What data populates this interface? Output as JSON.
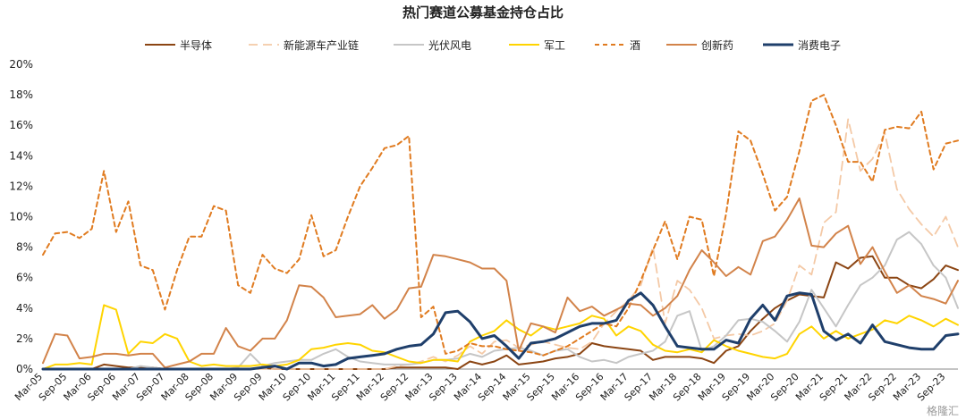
{
  "chart_data": {
    "type": "line",
    "title": "热门赛道公募基金持仓占比",
    "ylim": [
      0,
      20
    ],
    "yticks": [
      "0%",
      "2%",
      "4%",
      "6%",
      "8%",
      "10%",
      "12%",
      "14%",
      "16%",
      "18%",
      "20%"
    ],
    "x": [
      "Mar-05",
      "Jun-05",
      "Sep-05",
      "Dec-05",
      "Mar-06",
      "Jun-06",
      "Sep-06",
      "Dec-06",
      "Mar-07",
      "Jun-07",
      "Sep-07",
      "Dec-07",
      "Mar-08",
      "Jun-08",
      "Sep-08",
      "Dec-08",
      "Mar-09",
      "Jun-09",
      "Sep-09",
      "Dec-09",
      "Mar-10",
      "Jun-10",
      "Sep-10",
      "Dec-10",
      "Mar-11",
      "Jun-11",
      "Sep-11",
      "Dec-11",
      "Mar-12",
      "Jun-12",
      "Sep-12",
      "Dec-12",
      "Mar-13",
      "Jun-13",
      "Sep-13",
      "Dec-13",
      "Mar-14",
      "Jun-14",
      "Sep-14",
      "Dec-14",
      "Mar-15",
      "Jun-15",
      "Sep-15",
      "Dec-15",
      "Mar-16",
      "Jun-16",
      "Sep-16",
      "Dec-16",
      "Mar-17",
      "Jun-17",
      "Sep-17",
      "Dec-17",
      "Mar-18",
      "Jun-18",
      "Sep-18",
      "Dec-18",
      "Mar-19",
      "Jun-19",
      "Sep-19",
      "Dec-19",
      "Mar-20",
      "Jun-20",
      "Sep-20",
      "Dec-20",
      "Mar-21",
      "Jun-21",
      "Sep-21",
      "Dec-21",
      "Mar-22",
      "Jun-22",
      "Sep-22",
      "Dec-22",
      "Mar-23",
      "Jun-23",
      "Sep-23",
      "Dec-23"
    ],
    "xticks": [
      "Mar-05",
      "Sep-05",
      "Mar-06",
      "Sep-06",
      "Mar-07",
      "Sep-07",
      "Mar-08",
      "Sep-08",
      "Mar-09",
      "Sep-09",
      "Mar-10",
      "Sep-10",
      "Mar-11",
      "Sep-11",
      "Mar-12",
      "Sep-12",
      "Mar-13",
      "Sep-13",
      "Mar-14",
      "Sep-14",
      "Mar-15",
      "Sep-15",
      "Mar-16",
      "Sep-16",
      "Mar-17",
      "Sep-17",
      "Mar-18",
      "Sep-18",
      "Mar-19",
      "Sep-19",
      "Mar-20",
      "Sep-20",
      "Mar-21",
      "Sep-21",
      "Mar-22",
      "Sep-22",
      "Mar-23",
      "Sep-23"
    ],
    "series": [
      {
        "name": "半导体",
        "color": "#8B4513",
        "dash": "solid",
        "width": 2,
        "values": [
          0,
          0,
          0,
          0,
          0,
          0.3,
          0.2,
          0.1,
          0.1,
          0.1,
          0,
          0,
          0,
          0,
          0,
          0,
          0,
          0,
          0.1,
          0,
          0,
          0,
          0,
          0,
          0,
          0,
          0,
          0,
          0,
          0.1,
          0.1,
          0.1,
          0.1,
          0.1,
          0,
          0.5,
          0.3,
          0.5,
          0.9,
          0.3,
          0.4,
          0.5,
          0.7,
          0.8,
          1.0,
          1.7,
          1.5,
          1.4,
          1.3,
          1.2,
          0.6,
          0.8,
          0.8,
          0.8,
          0.7,
          0.4,
          1.2,
          1.5,
          2.5,
          3.3,
          4.0,
          4.5,
          4.9,
          4.8,
          4.7,
          7.0,
          6.6,
          7.3,
          7.4,
          6.0,
          6.0,
          5.5,
          5.3,
          5.9,
          6.8,
          6.5
        ]
      },
      {
        "name": "新能源车产业链",
        "color": "#F4C9A6",
        "dash": "10,6",
        "width": 1.8,
        "values": [
          0,
          0,
          0,
          0,
          0,
          0,
          0,
          0,
          0,
          0,
          0,
          0,
          0,
          0,
          0,
          0,
          0,
          0,
          0,
          0,
          0,
          0,
          0,
          0,
          0,
          0,
          0,
          0,
          0,
          0.2,
          0.3,
          0.5,
          0.8,
          0.5,
          0.9,
          1.5,
          1.0,
          1.8,
          1.9,
          1.4,
          1.6,
          1.8,
          1.6,
          1.4,
          1.3,
          1.8,
          3.0,
          3.8,
          4.5,
          5.5,
          8.0,
          3.0,
          5.8,
          5.2,
          4.0,
          2.0,
          2.2,
          2.3,
          2.2,
          2.5,
          3.0,
          4.5,
          6.8,
          6.2,
          9.6,
          10.3,
          16.4,
          13.0,
          13.8,
          15.5,
          11.8,
          10.5,
          9.5,
          8.7,
          10.0,
          8.0
        ]
      },
      {
        "name": "光伏风电",
        "color": "#C6C6C6",
        "dash": "solid",
        "width": 2,
        "values": [
          0,
          0,
          0,
          0,
          0,
          0,
          0,
          0,
          0.2,
          0.1,
          0,
          0,
          0,
          0,
          0,
          0,
          0.1,
          1.0,
          0.2,
          0.4,
          0.5,
          0.6,
          0.6,
          1.0,
          1.3,
          0.8,
          0.5,
          0.4,
          0.3,
          0.3,
          0.3,
          0.4,
          0.6,
          0.6,
          0.7,
          1.0,
          0.8,
          1.2,
          1.3,
          1.4,
          1.2,
          0.9,
          1.2,
          1.3,
          0.8,
          0.5,
          0.6,
          0.4,
          0.8,
          1.0,
          1.2,
          1.8,
          3.5,
          3.8,
          1.2,
          1.5,
          2.2,
          3.2,
          3.3,
          3.1,
          2.5,
          1.8,
          3.1,
          5.2,
          4.0,
          2.8,
          4.2,
          5.5,
          6.0,
          6.8,
          8.5,
          9.0,
          8.2,
          6.8,
          6.0,
          4.0
        ]
      },
      {
        "name": "军工",
        "color": "#FFD400",
        "dash": "solid",
        "width": 2,
        "values": [
          0,
          0.3,
          0.3,
          0.4,
          0.3,
          4.2,
          3.9,
          1.0,
          1.8,
          1.7,
          2.3,
          2.0,
          0.5,
          0.2,
          0.3,
          0.2,
          0.2,
          0.2,
          0.3,
          0.2,
          0.3,
          0.6,
          1.3,
          1.4,
          1.6,
          1.7,
          1.6,
          1.2,
          1.1,
          0.8,
          0.5,
          0.4,
          0.6,
          0.6,
          0.5,
          1.8,
          2.2,
          2.5,
          3.2,
          2.6,
          2.2,
          2.8,
          2.6,
          2.8,
          3.0,
          3.5,
          3.3,
          2.2,
          2.8,
          2.5,
          1.6,
          1.2,
          1.1,
          1.3,
          1.1,
          1.9,
          1.5,
          1.2,
          1.0,
          0.8,
          0.7,
          1.0,
          2.3,
          2.8,
          2.0,
          2.5,
          2.0,
          2.3,
          2.6,
          3.2,
          3.0,
          3.5,
          3.2,
          2.8,
          3.3,
          2.9
        ]
      },
      {
        "name": "酒",
        "color": "#E07B20",
        "dash": "5,4",
        "width": 2,
        "values": [
          7.5,
          8.9,
          9.0,
          8.6,
          9.2,
          13.0,
          9.0,
          11.0,
          6.8,
          6.5,
          3.9,
          6.5,
          8.7,
          8.7,
          10.7,
          10.4,
          5.5,
          5.0,
          7.5,
          6.6,
          6.3,
          7.2,
          10.1,
          7.4,
          7.8,
          10.0,
          12.0,
          13.2,
          14.5,
          14.7,
          15.3,
          3.4,
          4.1,
          1.0,
          1.2,
          1.7,
          1.5,
          1.5,
          1.3,
          1.2,
          1.1,
          0.9,
          1.2,
          1.5,
          2.0,
          2.5,
          3.0,
          2.8,
          4.0,
          5.8,
          7.8,
          9.7,
          7.2,
          10.0,
          9.8,
          6.1,
          10.2,
          15.6,
          15.0,
          12.8,
          10.4,
          11.3,
          14.3,
          17.6,
          18.0,
          16.0,
          13.6,
          13.6,
          12.3,
          15.7,
          15.9,
          15.8,
          16.9,
          13.1,
          14.8,
          15.0
        ]
      },
      {
        "name": "创新药",
        "color": "#D2834A",
        "dash": "solid",
        "width": 2,
        "values": [
          0.4,
          2.3,
          2.2,
          0.7,
          0.8,
          1.0,
          1.0,
          0.9,
          1.0,
          1.0,
          0.1,
          0.3,
          0.5,
          1.0,
          1.0,
          2.7,
          1.5,
          1.2,
          2.0,
          2.0,
          3.2,
          5.5,
          5.4,
          4.7,
          3.4,
          3.5,
          3.6,
          4.2,
          3.3,
          3.9,
          5.3,
          5.4,
          7.5,
          7.4,
          7.2,
          7.0,
          6.6,
          6.6,
          5.8,
          1.2,
          3.0,
          2.8,
          2.4,
          4.7,
          3.8,
          4.1,
          3.5,
          3.9,
          4.3,
          4.2,
          3.5,
          4.0,
          4.8,
          6.5,
          7.8,
          7.0,
          6.1,
          6.7,
          6.2,
          8.4,
          8.7,
          9.8,
          11.2,
          8.1,
          8.0,
          8.9,
          9.4,
          6.9,
          8.0,
          6.4,
          5.0,
          5.5,
          4.8,
          4.6,
          4.3,
          5.8
        ]
      },
      {
        "name": "消费电子",
        "color": "#1F3F6B",
        "dash": "solid",
        "width": 3,
        "values": [
          0,
          0,
          0,
          0,
          0,
          0,
          0,
          0,
          0,
          0,
          0,
          0,
          0,
          0,
          0,
          0,
          0,
          0,
          0.1,
          0.2,
          0,
          0.4,
          0.4,
          0.2,
          0.3,
          0.7,
          0.8,
          0.9,
          1.0,
          1.3,
          1.5,
          1.6,
          2.3,
          3.7,
          3.8,
          3.1,
          2.0,
          2.2,
          1.5,
          0.7,
          1.7,
          1.8,
          2.0,
          2.4,
          2.8,
          3.0,
          3.0,
          3.2,
          4.5,
          5.0,
          4.2,
          2.8,
          1.5,
          1.4,
          1.3,
          1.3,
          1.9,
          1.7,
          3.3,
          4.2,
          3.2,
          4.8,
          5.0,
          4.9,
          2.5,
          1.9,
          2.3,
          1.7,
          2.9,
          1.8,
          1.6,
          1.4,
          1.3,
          1.3,
          2.2,
          2.3
        ]
      }
    ],
    "legend_position": "top",
    "grid": false
  },
  "watermark": "格隆汇"
}
